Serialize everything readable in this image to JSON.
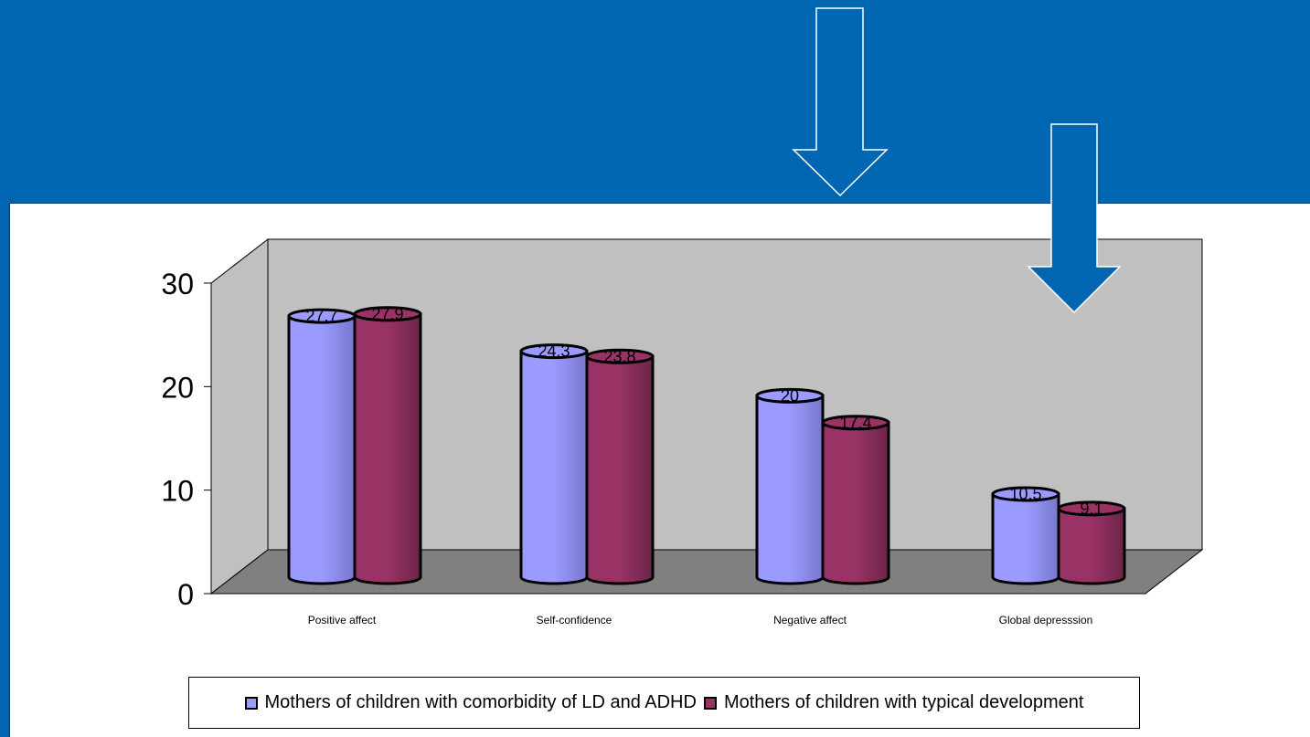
{
  "chart_data": {
    "type": "bar",
    "title": "",
    "xlabel": "",
    "ylabel": "",
    "categories": [
      "Positive affect",
      "Self-confidence",
      "Negative affect",
      "Global depresssion"
    ],
    "series": [
      {
        "name": "Mothers of children with comorbidity of LD and ADHD",
        "values": [
          27.7,
          24.3,
          20,
          10.5
        ],
        "color": "#9b9bff"
      },
      {
        "name": "Mothers of children with typical development",
        "values": [
          27.9,
          23.8,
          17.4,
          9.1
        ],
        "color": "#993366"
      }
    ],
    "ylim": [
      0,
      30
    ],
    "yticks": [
      "0",
      "10",
      "20",
      "30"
    ],
    "data_labels": [
      [
        "27.7",
        "24.3",
        "20",
        "10.5"
      ],
      [
        "27.9",
        "23.8",
        "17.4",
        "9.1"
      ]
    ],
    "style": "3d-cylinder",
    "legend_position": "bottom",
    "grid": false,
    "wall_color": "#c0c0c0",
    "floor_color": "#808080"
  },
  "annotations": [
    {
      "name": "outline-down-arrow-icon",
      "style": "outline"
    },
    {
      "name": "filled-down-arrow-icon",
      "style": "filled",
      "color": "#0066b2"
    }
  ]
}
